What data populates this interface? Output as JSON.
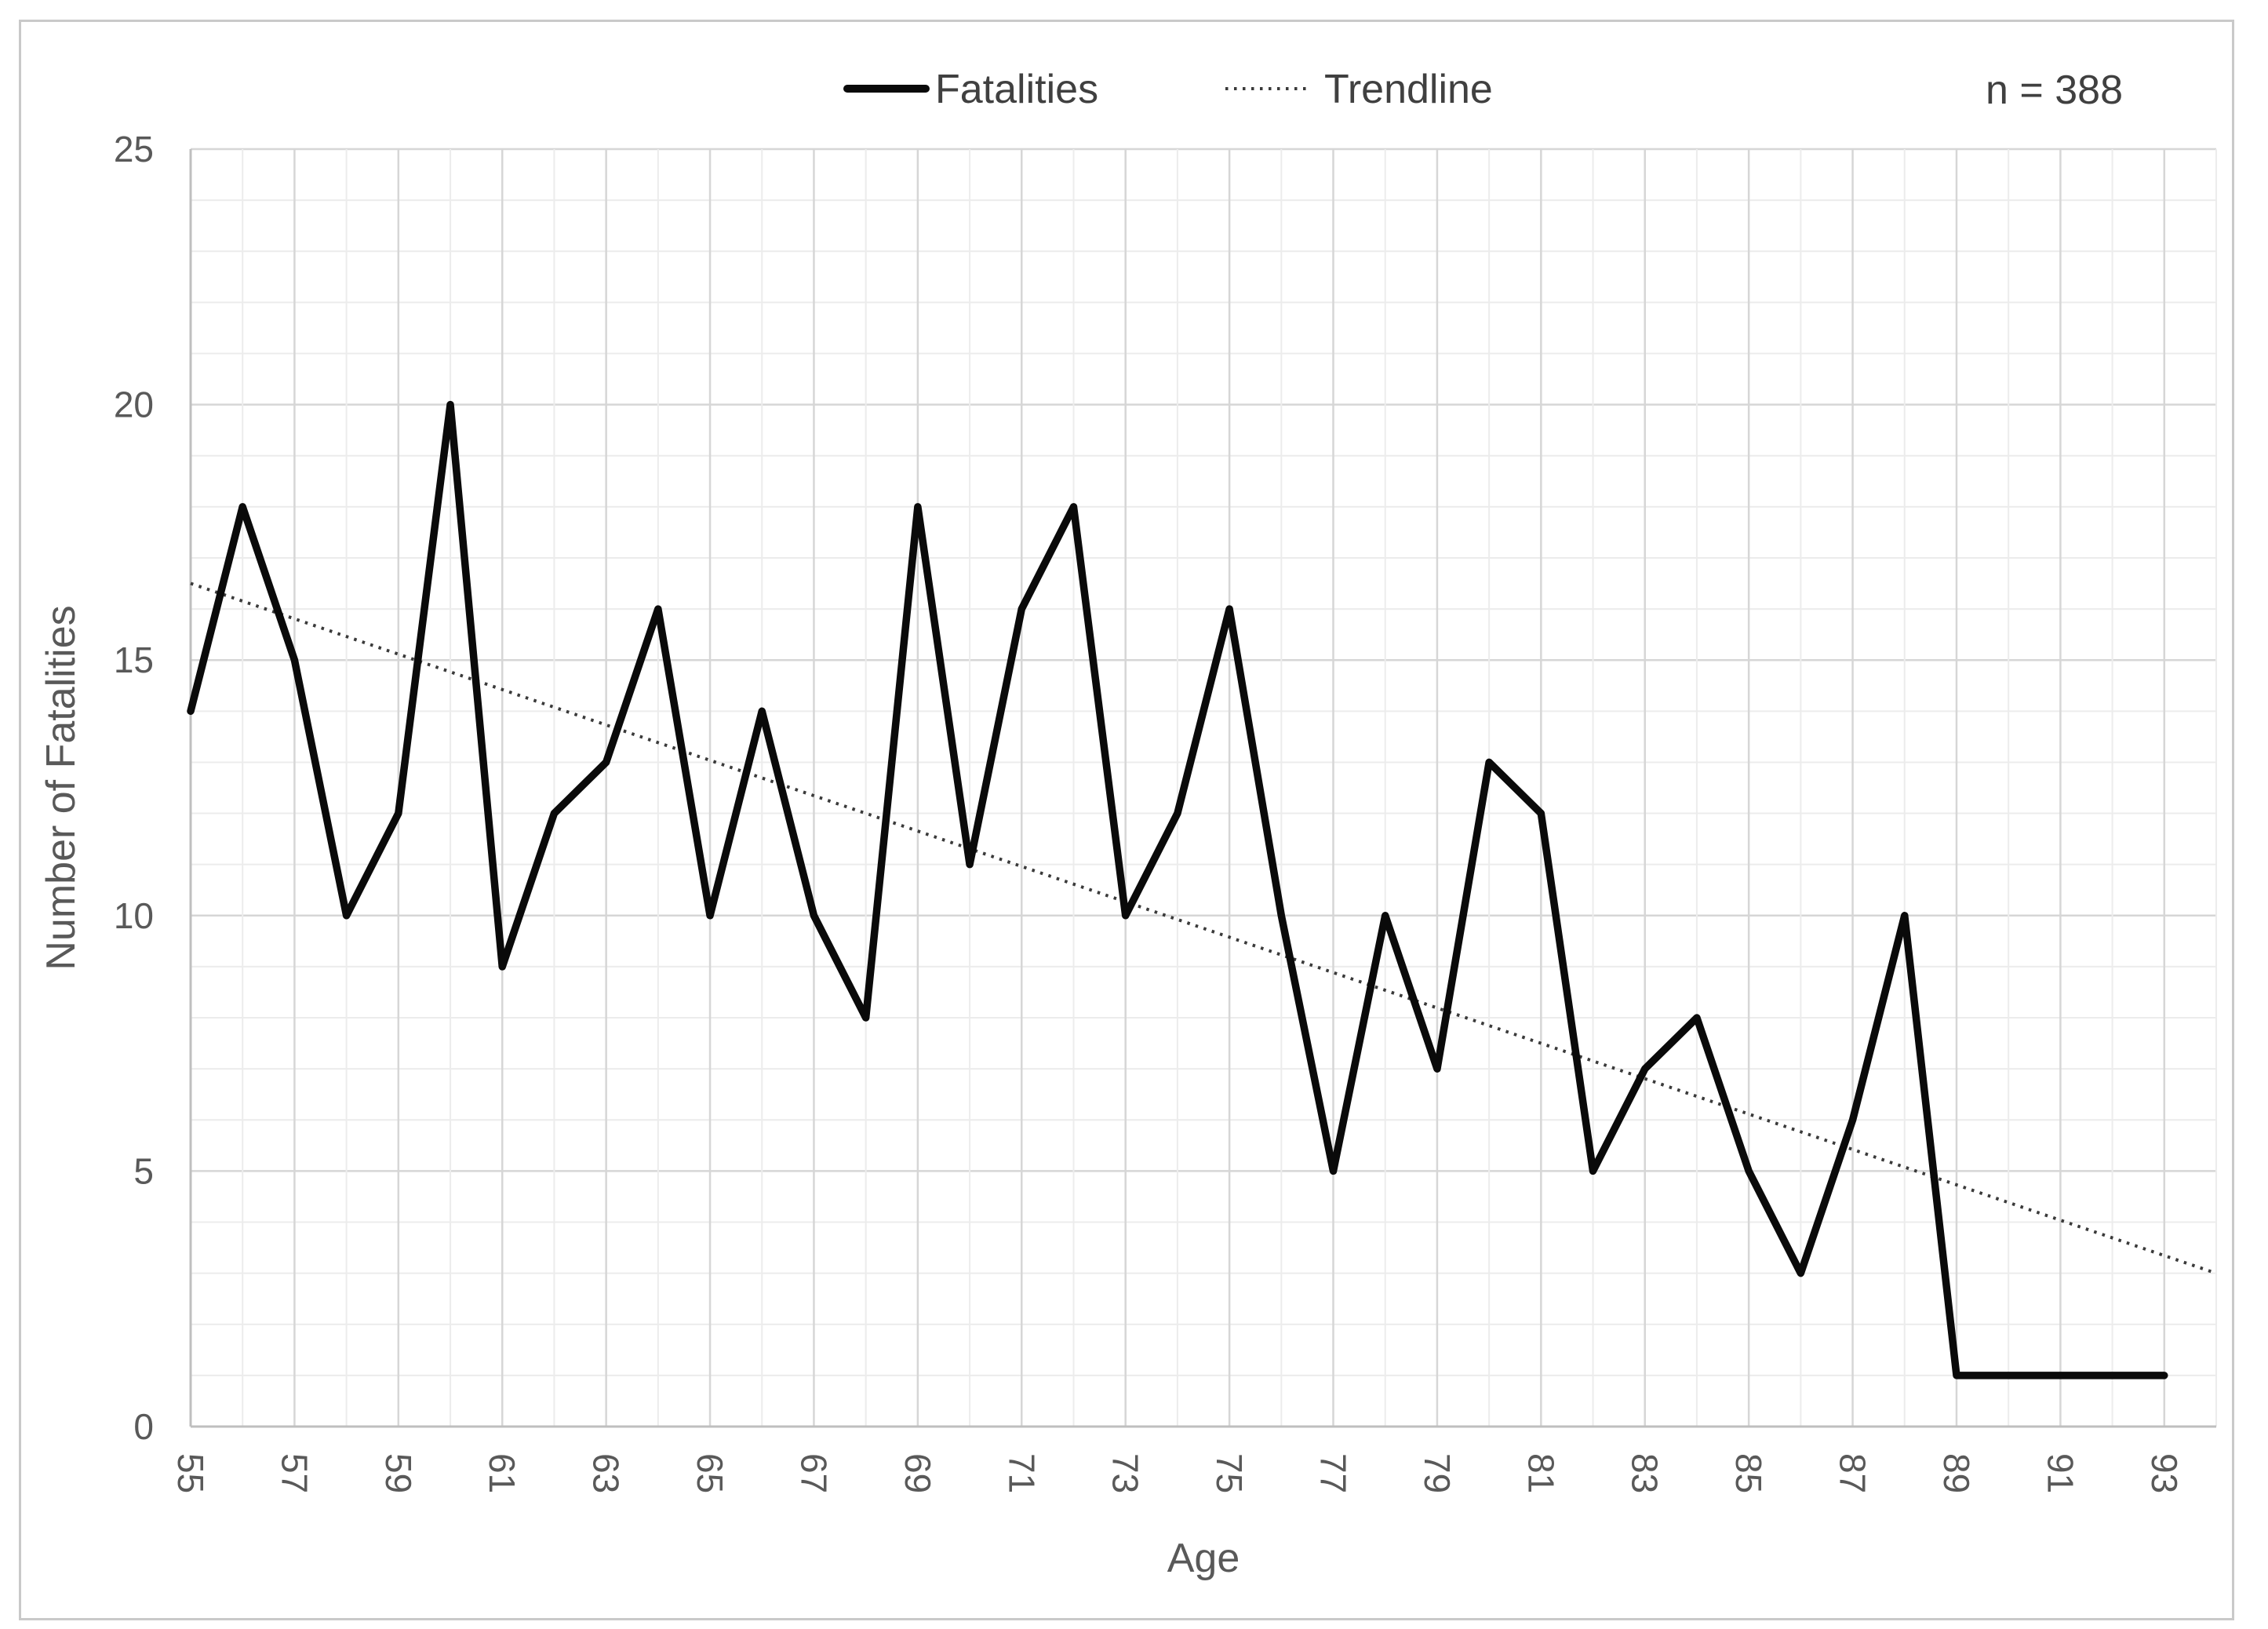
{
  "chart_data": {
    "type": "line",
    "title": "",
    "xlabel": "Age",
    "ylabel": "Number of Fatalities",
    "x": [
      55,
      56,
      57,
      58,
      59,
      60,
      61,
      62,
      63,
      64,
      65,
      66,
      67,
      68,
      69,
      70,
      71,
      72,
      73,
      74,
      75,
      76,
      77,
      78,
      79,
      80,
      81,
      82,
      83,
      84,
      85,
      86,
      87,
      88,
      89,
      90,
      91,
      92,
      93
    ],
    "series": [
      {
        "name": "Fatalities",
        "values": [
          14,
          18,
          15,
          10,
          12,
          20,
          9,
          12,
          13,
          16,
          10,
          14,
          10,
          8,
          18,
          11,
          16,
          18,
          10,
          12,
          16,
          10,
          5,
          10,
          7,
          13,
          12,
          5,
          7,
          8,
          5,
          3,
          6,
          10,
          1,
          1,
          1,
          1,
          1
        ]
      }
    ],
    "trendline": {
      "name": "Trendline",
      "start_age": 55,
      "end_age": 94,
      "start_value": 16.5,
      "end_value": 3.0,
      "style": "dotted"
    },
    "xlim": [
      55,
      94
    ],
    "ylim": [
      0,
      25
    ],
    "x_ticks": [
      55,
      57,
      59,
      61,
      63,
      65,
      67,
      69,
      71,
      73,
      75,
      77,
      79,
      81,
      83,
      85,
      87,
      89,
      91,
      93
    ],
    "y_ticks": [
      0,
      5,
      10,
      15,
      20,
      25
    ],
    "grid": "on",
    "legend_position": "top-center",
    "legend": [
      {
        "label": "Fatalities",
        "marker": "solid-line"
      },
      {
        "label": "Trendline",
        "marker": "dotted-line"
      }
    ],
    "annotation": "n = 388",
    "colors": {
      "series_line": "#0a0a0a",
      "trendline": "#3a3a3a",
      "grid_major": "#d6d6d6",
      "grid_minor": "#ececec",
      "axis_line": "#bfbfbf",
      "tick_text": "#595959",
      "legend_text": "#404040",
      "frame_border": "#c9c9c9",
      "background": "#ffffff"
    }
  }
}
